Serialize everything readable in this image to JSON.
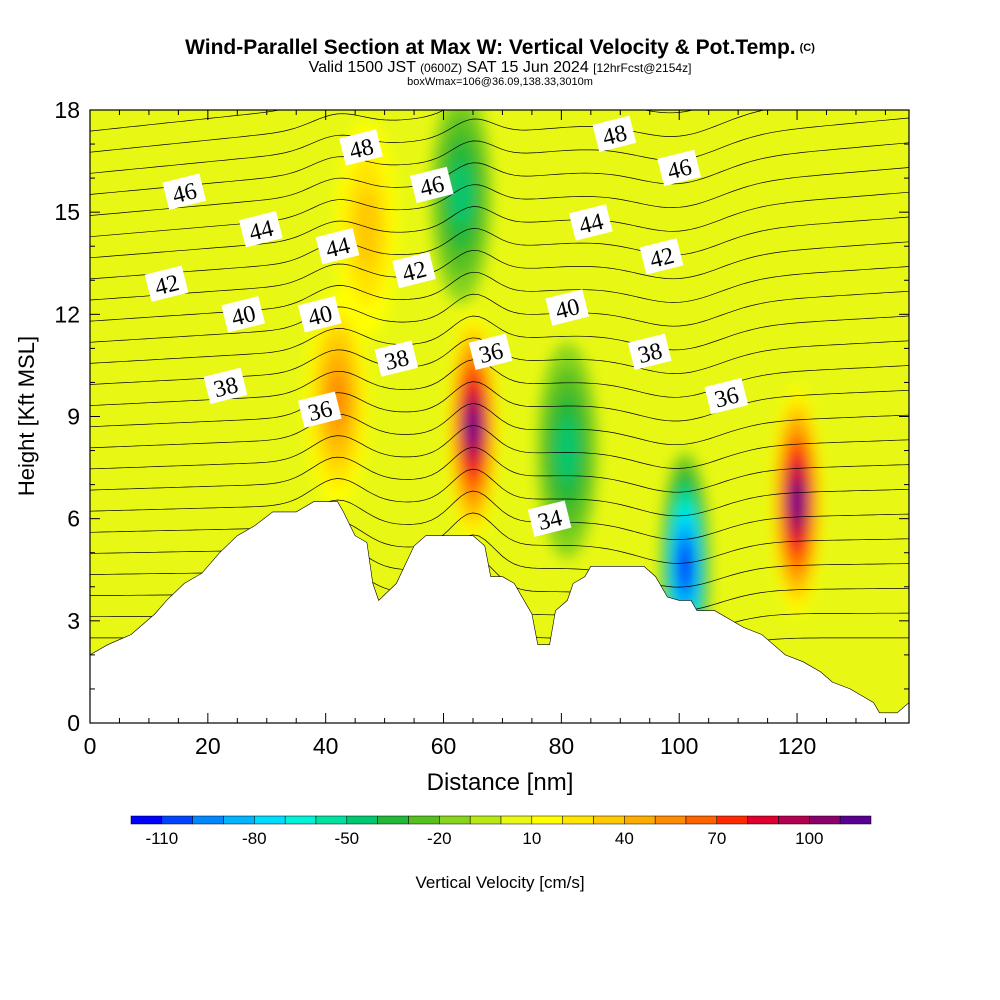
{
  "header": {
    "title": "Wind-Parallel Section at Max W: Vertical Velocity & Pot.Temp.",
    "copyright": "(C)",
    "valid_prefix": "Valid 1500 JST",
    "valid_z": "(0600Z)",
    "valid_date": "SAT 15 Jun 2024",
    "forecast": "[12hrFcst@2154z]",
    "box_line": "boxWmax=106@36.09,138.33,3010m"
  },
  "chart_data": {
    "type": "heatmap",
    "title": "Wind-Parallel Section at Max W: Vertical Velocity & Pot.Temp.",
    "xlabel": "Distance [nm]",
    "ylabel": "Height [Kft MSL]",
    "xlim": [
      0,
      139
    ],
    "ylim": [
      0,
      18
    ],
    "x_ticks": [
      0,
      20,
      40,
      60,
      80,
      100,
      120
    ],
    "y_ticks": [
      0,
      3,
      6,
      9,
      12,
      15,
      18
    ],
    "colorbar": {
      "label": "Vertical Velocity [cm/s]",
      "tick_labels": [
        -110,
        -80,
        -50,
        -20,
        10,
        40,
        70,
        100
      ],
      "bin_edges": [
        -120,
        -110,
        -100,
        -90,
        -80,
        -70,
        -60,
        -50,
        -40,
        -30,
        -20,
        -10,
        0,
        10,
        20,
        30,
        40,
        50,
        60,
        70,
        80,
        90,
        100,
        110,
        120
      ],
      "colors": [
        "#0000ff",
        "#0044ff",
        "#0088ff",
        "#00b4ff",
        "#00dcff",
        "#00f0d8",
        "#00e0a0",
        "#00c870",
        "#22b83a",
        "#55c020",
        "#88d41c",
        "#b8e814",
        "#e8f814",
        "#ffff00",
        "#ffe400",
        "#ffc800",
        "#ffac00",
        "#ff8c00",
        "#ff6400",
        "#ff2800",
        "#e00030",
        "#b40050",
        "#8c006c",
        "#5a0090"
      ]
    },
    "contour_labels": [
      "34",
      "36",
      "38",
      "40",
      "42",
      "44",
      "46",
      "48"
    ],
    "contour_label_positions": [
      {
        "value": "48",
        "x": 46,
        "y": 16.9
      },
      {
        "value": "48",
        "x": 89,
        "y": 17.3
      },
      {
        "value": "46",
        "x": 16,
        "y": 15.6
      },
      {
        "value": "46",
        "x": 58,
        "y": 15.8
      },
      {
        "value": "46",
        "x": 100,
        "y": 16.3
      },
      {
        "value": "44",
        "x": 29,
        "y": 14.5
      },
      {
        "value": "44",
        "x": 42,
        "y": 14.0
      },
      {
        "value": "44",
        "x": 85,
        "y": 14.7
      },
      {
        "value": "42",
        "x": 13,
        "y": 12.9
      },
      {
        "value": "42",
        "x": 55,
        "y": 13.3
      },
      {
        "value": "42",
        "x": 97,
        "y": 13.7
      },
      {
        "value": "40",
        "x": 26,
        "y": 12.0
      },
      {
        "value": "40",
        "x": 39,
        "y": 12.0
      },
      {
        "value": "40",
        "x": 81,
        "y": 12.2
      },
      {
        "value": "38",
        "x": 23,
        "y": 9.9
      },
      {
        "value": "38",
        "x": 52,
        "y": 10.7
      },
      {
        "value": "38",
        "x": 95,
        "y": 10.9
      },
      {
        "value": "36",
        "x": 39,
        "y": 9.2
      },
      {
        "value": "36",
        "x": 68,
        "y": 10.9
      },
      {
        "value": "36",
        "x": 108,
        "y": 9.6
      },
      {
        "value": "34",
        "x": 78,
        "y": 6.0
      }
    ],
    "w_features": [
      {
        "x": 65,
        "y": 8.7,
        "w_max": 110
      },
      {
        "x": 120,
        "y": 6.5,
        "w_max": 112
      },
      {
        "x": 42,
        "y": 9.5,
        "w_max": 50
      },
      {
        "x": 101,
        "y": 4.6,
        "w_max": -105
      },
      {
        "x": 47,
        "y": 14.5,
        "w_max": 30
      },
      {
        "x": 81,
        "y": 8.0,
        "w_max": -35
      },
      {
        "x": 63,
        "y": 15.5,
        "w_max": -40
      }
    ],
    "terrain": [
      [
        0,
        2
      ],
      [
        3,
        2.3
      ],
      [
        7,
        2.6
      ],
      [
        11,
        3.2
      ],
      [
        13,
        3.6
      ],
      [
        16,
        4.1
      ],
      [
        19,
        4.4
      ],
      [
        22,
        5
      ],
      [
        25,
        5.5
      ],
      [
        28,
        5.8
      ],
      [
        31,
        6.2
      ],
      [
        35,
        6.2
      ],
      [
        38,
        6.5
      ],
      [
        42,
        6.5
      ],
      [
        43,
        6.2
      ],
      [
        45,
        5.5
      ],
      [
        47,
        5.3
      ],
      [
        48,
        4.1
      ],
      [
        49,
        3.6
      ],
      [
        52,
        4.1
      ],
      [
        55,
        5.2
      ],
      [
        57,
        5.5
      ],
      [
        62,
        5.5
      ],
      [
        65,
        5.5
      ],
      [
        67,
        5.2
      ],
      [
        68,
        4.3
      ],
      [
        70,
        4.3
      ],
      [
        72,
        4.1
      ],
      [
        75,
        3.2
      ],
      [
        76,
        2.3
      ],
      [
        78,
        2.3
      ],
      [
        79,
        3.3
      ],
      [
        81,
        3.6
      ],
      [
        82,
        4.1
      ],
      [
        84,
        4.3
      ],
      [
        85,
        4.6
      ],
      [
        94,
        4.6
      ],
      [
        96,
        4.3
      ],
      [
        98,
        3.7
      ],
      [
        100,
        3.6
      ],
      [
        101,
        3.6
      ],
      [
        102,
        3.6
      ],
      [
        103,
        3.3
      ],
      [
        106,
        3.3
      ],
      [
        109,
        3.0
      ],
      [
        111,
        2.8
      ],
      [
        114,
        2.6
      ],
      [
        116,
        2.3
      ],
      [
        118,
        2.0
      ],
      [
        121,
        1.8
      ],
      [
        124,
        1.5
      ],
      [
        126,
        1.2
      ],
      [
        129,
        1.0
      ],
      [
        131,
        0.8
      ],
      [
        133,
        0.6
      ],
      [
        134,
        0.3
      ],
      [
        137,
        0.3
      ],
      [
        139,
        0.6
      ]
    ]
  }
}
